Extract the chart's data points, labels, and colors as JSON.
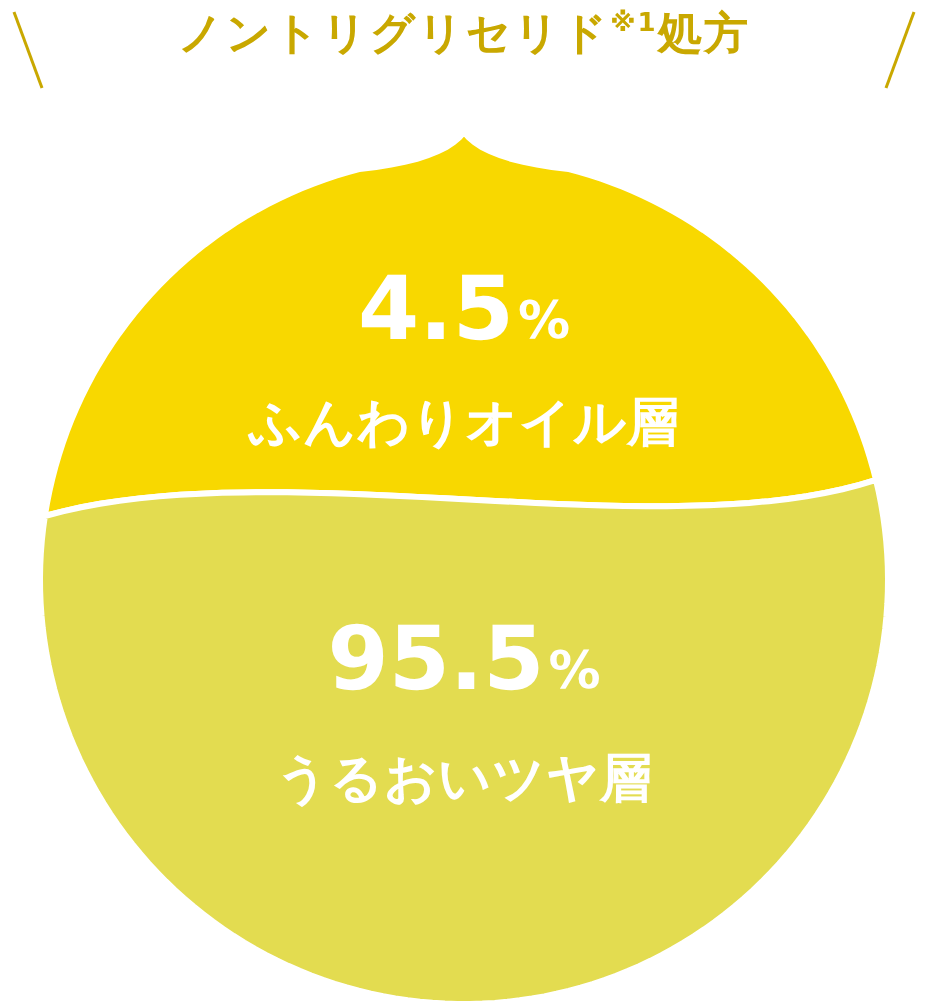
{
  "chart_data": {
    "type": "other",
    "title": "ノントリグリセリド$^{※1}$処方",
    "categories": [
      "ふんわりオイル層",
      "うるおいツヤ層"
    ],
    "values": [
      4.5,
      95.5
    ],
    "value_labels": [
      "4.5%",
      "95.5%"
    ],
    "colors": [
      "#f8d800",
      "#e3dc50"
    ]
  }
}
